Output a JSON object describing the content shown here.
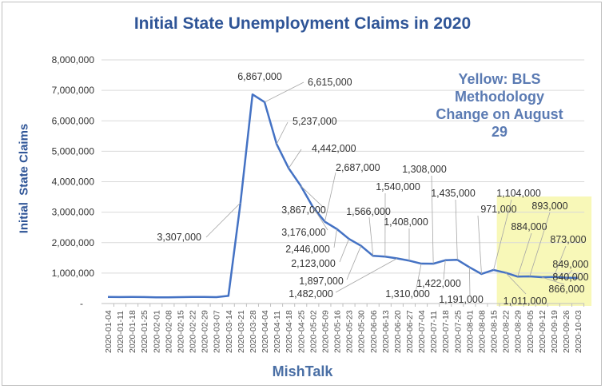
{
  "chart_data": {
    "type": "line",
    "title": "Initial State Unemployment Claims in 2020",
    "xlabel": "MishTalk",
    "ylabel": "Initial  State Claims",
    "ylim": [
      0,
      8000000
    ],
    "yticks": [
      "-",
      "1,000,000",
      "2,000,000",
      "3,000,000",
      "4,000,000",
      "5,000,000",
      "6,000,000",
      "7,000,000",
      "8,000,000"
    ],
    "grid": true,
    "line_color": "#4472c4",
    "highlight_color": "#f8f8b8",
    "annotation": "Yellow: BLS Methodology Change on August 29",
    "highlight_range": [
      "2020-08-22",
      "2020-10-03"
    ],
    "x": [
      "2020-01-04",
      "2020-01-11",
      "2020-01-18",
      "2020-01-25",
      "2020-02-01",
      "2020-02-08",
      "2020-02-15",
      "2020-02-22",
      "2020-02-29",
      "2020-03-07",
      "2020-03-14",
      "2020-03-21",
      "2020-03-28",
      "2020-04-04",
      "2020-04-11",
      "2020-04-18",
      "2020-04-25",
      "2020-05-02",
      "2020-05-09",
      "2020-05-16",
      "2020-05-23",
      "2020-05-30",
      "2020-06-06",
      "2020-06-13",
      "2020-06-20",
      "2020-06-27",
      "2020-07-04",
      "2020-07-11",
      "2020-07-18",
      "2020-07-25",
      "2020-08-01",
      "2020-08-08",
      "2020-08-15",
      "2020-08-22",
      "2020-08-29",
      "2020-09-05",
      "2020-09-12",
      "2020-09-19",
      "2020-09-26",
      "2020-10-03"
    ],
    "values": [
      215000,
      212000,
      216000,
      214000,
      202000,
      204000,
      210000,
      217000,
      216000,
      211000,
      251000,
      3307000,
      6867000,
      6615000,
      5237000,
      4442000,
      3867000,
      3176000,
      2687000,
      2446000,
      2123000,
      1897000,
      1566000,
      1540000,
      1482000,
      1408000,
      1310000,
      1308000,
      1422000,
      1435000,
      1191000,
      971000,
      1104000,
      1011000,
      884000,
      893000,
      866000,
      873000,
      849000,
      840000
    ],
    "data_labels": {
      "11": "3,307,000",
      "12": "6,867,000",
      "13": "6,615,000",
      "14": "5,237,000",
      "15": "4,442,000",
      "16": "3,867,000",
      "17": "3,176,000",
      "18": "2,687,000",
      "19": "2,446,000",
      "20": "2,123,000",
      "21": "1,897,000",
      "22": "1,566,000",
      "23": "1,540,000",
      "24": "1,482,000",
      "25": "1,408,000",
      "26": "1,310,000",
      "27": "1,308,000",
      "28": "1,422,000",
      "29": "1,435,000",
      "30": "1,191,000",
      "31": "971,000",
      "32": "1,104,000",
      "33": "1,011,000",
      "34": "884,000",
      "35": "893,000",
      "36": "866,000",
      "37": "873,000",
      "38": "849,000",
      "39": "840,000"
    }
  }
}
